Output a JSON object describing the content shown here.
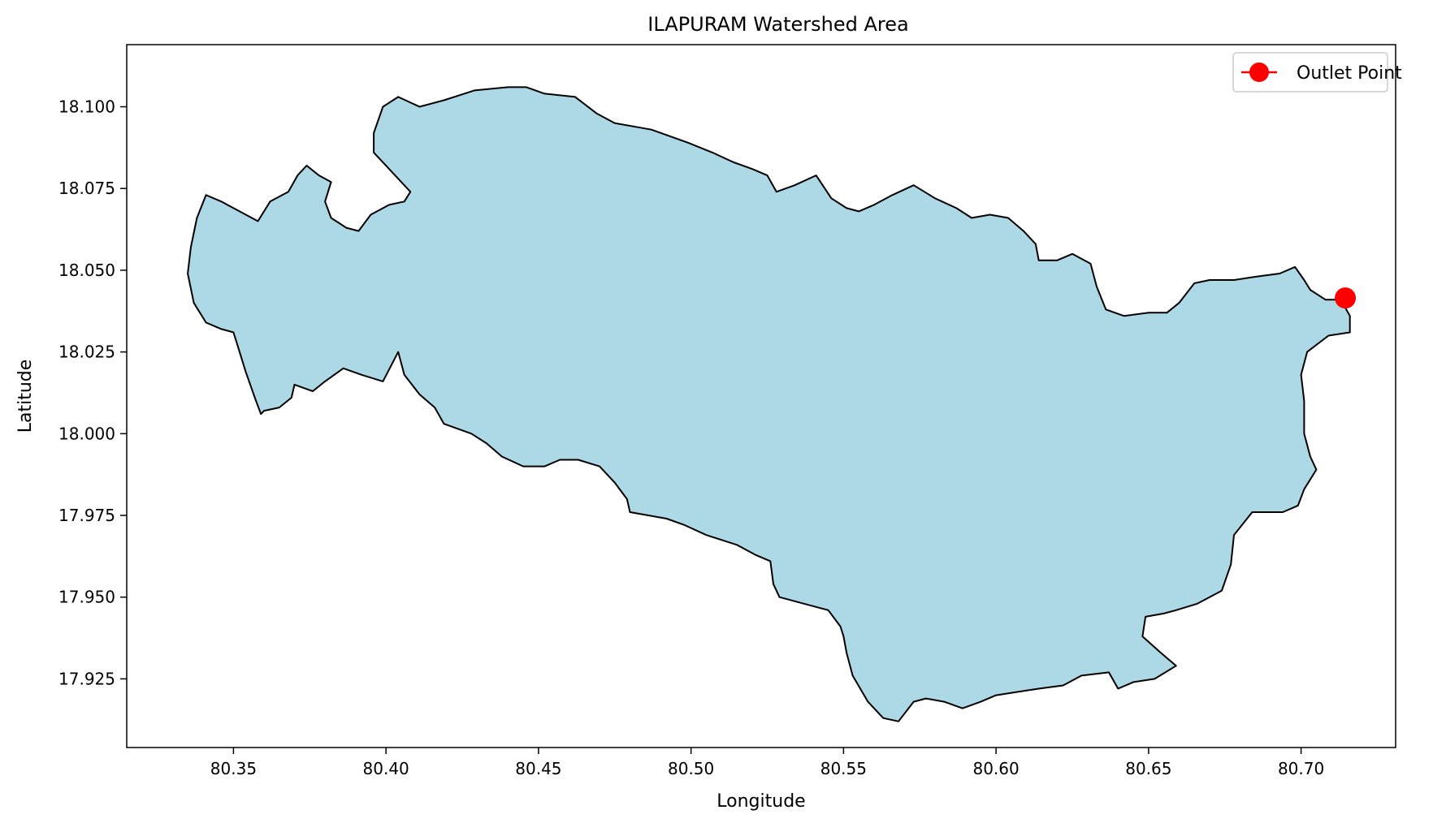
{
  "chart_data": {
    "type": "map",
    "title": "ILAPURAM Watershed Area",
    "xlabel": "Longitude",
    "ylabel": "Latitude",
    "xlim": [
      80.315,
      80.731
    ],
    "ylim": [
      17.904,
      18.119
    ],
    "xticks": [
      80.35,
      80.4,
      80.45,
      80.5,
      80.55,
      80.6,
      80.65,
      80.7
    ],
    "xtick_labels": [
      "80.35",
      "80.40",
      "80.45",
      "80.50",
      "80.55",
      "80.60",
      "80.65",
      "80.70"
    ],
    "yticks": [
      17.925,
      17.95,
      17.975,
      18.0,
      18.025,
      18.05,
      18.075,
      18.1
    ],
    "ytick_labels": [
      "17.925",
      "17.950",
      "17.975",
      "18.000",
      "18.025",
      "18.050",
      "18.075",
      "18.100"
    ],
    "grid": false,
    "legend": {
      "position": "top-right",
      "entries": [
        {
          "label": "Outlet Point",
          "color": "#ff0000",
          "marker": "circle"
        }
      ]
    },
    "watershed": {
      "fill": "#add8e6",
      "edge": "#000000",
      "boundary": [
        [
          80.338,
          18.066
        ],
        [
          80.341,
          18.073
        ],
        [
          80.346,
          18.071
        ],
        [
          80.352,
          18.068
        ],
        [
          80.358,
          18.065
        ],
        [
          80.362,
          18.071
        ],
        [
          80.368,
          18.074
        ],
        [
          80.371,
          18.079
        ],
        [
          80.374,
          18.082
        ],
        [
          80.378,
          18.079
        ],
        [
          80.382,
          18.077
        ],
        [
          80.38,
          18.071
        ],
        [
          80.382,
          18.066
        ],
        [
          80.387,
          18.063
        ],
        [
          80.391,
          18.062
        ],
        [
          80.395,
          18.067
        ],
        [
          80.401,
          18.07
        ],
        [
          80.406,
          18.071
        ],
        [
          80.408,
          18.074
        ],
        [
          80.401,
          18.081
        ],
        [
          80.396,
          18.086
        ],
        [
          80.396,
          18.092
        ],
        [
          80.399,
          18.1
        ],
        [
          80.404,
          18.103
        ],
        [
          80.411,
          18.1
        ],
        [
          80.419,
          18.102
        ],
        [
          80.429,
          18.105
        ],
        [
          80.44,
          18.106
        ],
        [
          80.446,
          18.106
        ],
        [
          80.452,
          18.104
        ],
        [
          80.462,
          18.103
        ],
        [
          80.469,
          18.098
        ],
        [
          80.475,
          18.095
        ],
        [
          80.487,
          18.093
        ],
        [
          80.499,
          18.089
        ],
        [
          80.507,
          18.086
        ],
        [
          80.514,
          18.083
        ],
        [
          80.52,
          18.081
        ],
        [
          80.525,
          18.079
        ],
        [
          80.528,
          18.074
        ],
        [
          80.534,
          18.076
        ],
        [
          80.541,
          18.079
        ],
        [
          80.546,
          18.072
        ],
        [
          80.551,
          18.069
        ],
        [
          80.555,
          18.068
        ],
        [
          80.56,
          18.07
        ],
        [
          80.566,
          18.073
        ],
        [
          80.573,
          18.076
        ],
        [
          80.58,
          18.072
        ],
        [
          80.587,
          18.069
        ],
        [
          80.592,
          18.066
        ],
        [
          80.598,
          18.067
        ],
        [
          80.604,
          18.066
        ],
        [
          80.609,
          18.062
        ],
        [
          80.613,
          18.058
        ],
        [
          80.614,
          18.053
        ],
        [
          80.62,
          18.053
        ],
        [
          80.625,
          18.055
        ],
        [
          80.631,
          18.052
        ],
        [
          80.633,
          18.045
        ],
        [
          80.636,
          18.038
        ],
        [
          80.642,
          18.036
        ],
        [
          80.65,
          18.037
        ],
        [
          80.656,
          18.037
        ],
        [
          80.66,
          18.04
        ],
        [
          80.665,
          18.046
        ],
        [
          80.67,
          18.047
        ],
        [
          80.678,
          18.047
        ],
        [
          80.685,
          18.048
        ],
        [
          80.693,
          18.049
        ],
        [
          80.698,
          18.051
        ],
        [
          80.701,
          18.047
        ],
        [
          80.703,
          18.044
        ],
        [
          80.708,
          18.041
        ],
        [
          80.713,
          18.041
        ],
        [
          80.716,
          18.036
        ],
        [
          80.716,
          18.031
        ],
        [
          80.709,
          18.03
        ],
        [
          80.702,
          18.025
        ],
        [
          80.7,
          18.018
        ],
        [
          80.701,
          18.01
        ],
        [
          80.701,
          18.0
        ],
        [
          80.703,
          17.993
        ],
        [
          80.705,
          17.989
        ],
        [
          80.701,
          17.983
        ],
        [
          80.699,
          17.978
        ],
        [
          80.694,
          17.976
        ],
        [
          80.684,
          17.976
        ],
        [
          80.678,
          17.969
        ],
        [
          80.677,
          17.96
        ],
        [
          80.674,
          17.952
        ],
        [
          80.666,
          17.948
        ],
        [
          80.659,
          17.946
        ],
        [
          80.655,
          17.945
        ],
        [
          80.649,
          17.944
        ],
        [
          80.648,
          17.938
        ],
        [
          80.654,
          17.933
        ],
        [
          80.659,
          17.929
        ],
        [
          80.652,
          17.925
        ],
        [
          80.645,
          17.924
        ],
        [
          80.64,
          17.922
        ],
        [
          80.637,
          17.927
        ],
        [
          80.628,
          17.926
        ],
        [
          80.622,
          17.923
        ],
        [
          80.614,
          17.922
        ],
        [
          80.607,
          17.921
        ],
        [
          80.6,
          17.92
        ],
        [
          80.595,
          17.918
        ],
        [
          80.589,
          17.916
        ],
        [
          80.583,
          17.918
        ],
        [
          80.577,
          17.919
        ],
        [
          80.573,
          17.918
        ],
        [
          80.568,
          17.912
        ],
        [
          80.563,
          17.913
        ],
        [
          80.558,
          17.918
        ],
        [
          80.553,
          17.926
        ],
        [
          80.551,
          17.933
        ],
        [
          80.55,
          17.938
        ],
        [
          80.549,
          17.941
        ],
        [
          80.545,
          17.946
        ],
        [
          80.537,
          17.948
        ],
        [
          80.529,
          17.95
        ],
        [
          80.527,
          17.954
        ],
        [
          80.526,
          17.961
        ],
        [
          80.521,
          17.963
        ],
        [
          80.515,
          17.966
        ],
        [
          80.505,
          17.969
        ],
        [
          80.498,
          17.972
        ],
        [
          80.492,
          17.974
        ],
        [
          80.486,
          17.975
        ],
        [
          80.48,
          17.976
        ],
        [
          80.479,
          17.98
        ],
        [
          80.475,
          17.985
        ],
        [
          80.47,
          17.99
        ],
        [
          80.463,
          17.992
        ],
        [
          80.457,
          17.992
        ],
        [
          80.452,
          17.99
        ],
        [
          80.445,
          17.99
        ],
        [
          80.438,
          17.993
        ],
        [
          80.433,
          17.997
        ],
        [
          80.428,
          18.0
        ],
        [
          80.419,
          18.003
        ],
        [
          80.416,
          18.008
        ],
        [
          80.411,
          18.012
        ],
        [
          80.406,
          18.018
        ],
        [
          80.404,
          18.025
        ],
        [
          80.399,
          18.016
        ],
        [
          80.392,
          18.018
        ],
        [
          80.386,
          18.02
        ],
        [
          80.38,
          18.016
        ],
        [
          80.376,
          18.013
        ],
        [
          80.37,
          18.015
        ],
        [
          80.369,
          18.011
        ],
        [
          80.365,
          18.008
        ],
        [
          80.36,
          18.007
        ],
        [
          80.359,
          18.006
        ],
        [
          80.357,
          18.011
        ],
        [
          80.354,
          18.019
        ],
        [
          80.352,
          18.025
        ],
        [
          80.35,
          18.031
        ],
        [
          80.346,
          18.032
        ],
        [
          80.341,
          18.034
        ],
        [
          80.337,
          18.04
        ],
        [
          80.335,
          18.049
        ],
        [
          80.336,
          18.057
        ],
        [
          80.338,
          18.066
        ]
      ]
    },
    "outlet_point": {
      "lon": 80.7145,
      "lat": 18.0415,
      "color": "#ff0000"
    }
  }
}
